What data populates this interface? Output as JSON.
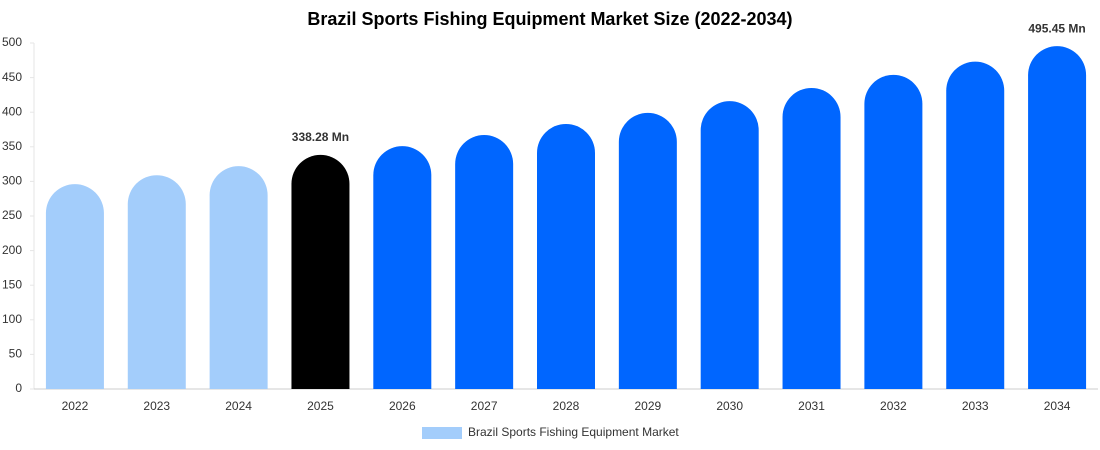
{
  "chart_data": {
    "type": "bar",
    "title": "Brazil Sports Fishing Equipment Market Size (2022-2034)",
    "categories": [
      "2022",
      "2023",
      "2024",
      "2025",
      "2026",
      "2027",
      "2028",
      "2029",
      "2030",
      "2031",
      "2032",
      "2033",
      "2034"
    ],
    "series": [
      {
        "name": "Brazil Sports Fishing Equipment Market",
        "color": "#a3cdfb",
        "colors": [
          "#a3cdfb",
          "#a3cdfb",
          "#a3cdfb",
          "#000000",
          "#0066ff",
          "#0066ff",
          "#0066ff",
          "#0066ff",
          "#0066ff",
          "#0066ff",
          "#0066ff",
          "#0066ff",
          "#0066ff"
        ],
        "values": [
          296,
          309,
          322,
          338.28,
          351,
          367,
          383,
          399,
          416,
          435,
          454,
          473,
          495.45
        ],
        "value_labels": [
          null,
          null,
          null,
          "338.28 Mn",
          null,
          null,
          null,
          null,
          null,
          null,
          null,
          null,
          "495.45 Mn"
        ]
      }
    ],
    "ylim": [
      0,
      500
    ],
    "yticks": [
      0,
      50,
      100,
      150,
      200,
      250,
      300,
      350,
      400,
      450,
      500
    ],
    "grid": false,
    "legend": "bottom"
  }
}
